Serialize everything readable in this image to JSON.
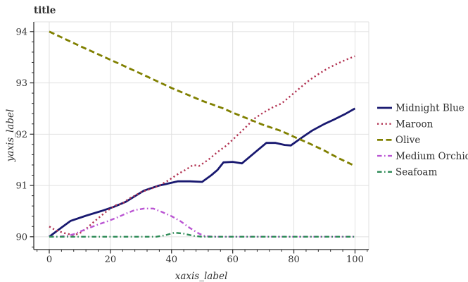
{
  "chart_data": {
    "type": "line",
    "title": "title",
    "xlabel": "xaxis_label",
    "ylabel": "yaxis_label",
    "x_ticks": [
      0,
      20,
      40,
      60,
      80,
      100
    ],
    "y_ticks": [
      90,
      91,
      92,
      93,
      94
    ],
    "xlim": [
      -5.06,
      104.5
    ],
    "ylim": [
      89.75,
      94.19
    ],
    "x_minor_step": 4,
    "y_minor_step": 0.2,
    "grid": true,
    "legend_position": "right-of-axes",
    "colors": {
      "text": "#303030",
      "tick_text": "#333333",
      "grid": "#e0e0e0",
      "spine_dark": "#262626",
      "spine_light": "#e0e0e0",
      "background": "#ffffff"
    },
    "series": [
      {
        "name": "Midnight Blue",
        "color": "#191970",
        "style": "solid",
        "dash": "",
        "width": 2.8,
        "points": [
          [
            0,
            90.0
          ],
          [
            4,
            90.18
          ],
          [
            7,
            90.31
          ],
          [
            12,
            90.41
          ],
          [
            17,
            90.5
          ],
          [
            21,
            90.58
          ],
          [
            25,
            90.68
          ],
          [
            28,
            90.79
          ],
          [
            31,
            90.9
          ],
          [
            36,
            91.0
          ],
          [
            42,
            91.08
          ],
          [
            46,
            91.08
          ],
          [
            50,
            91.07
          ],
          [
            53,
            91.2
          ],
          [
            55,
            91.3
          ],
          [
            57,
            91.45
          ],
          [
            60,
            91.46
          ],
          [
            63,
            91.43
          ],
          [
            67,
            91.63
          ],
          [
            71,
            91.83
          ],
          [
            74,
            91.83
          ],
          [
            77,
            91.79
          ],
          [
            79,
            91.78
          ],
          [
            83,
            91.95
          ],
          [
            86,
            92.07
          ],
          [
            90,
            92.2
          ],
          [
            93,
            92.28
          ],
          [
            97,
            92.4
          ],
          [
            100,
            92.5
          ]
        ]
      },
      {
        "name": "Maroon",
        "color": "#b23352",
        "style": "dotted",
        "dash": "2.2 3.6",
        "width": 2.4,
        "points": [
          [
            0,
            90.2
          ],
          [
            2,
            90.13
          ],
          [
            5,
            90.07
          ],
          [
            8,
            90.03
          ],
          [
            10,
            90.07
          ],
          [
            12,
            90.15
          ],
          [
            14,
            90.26
          ],
          [
            16,
            90.36
          ],
          [
            18,
            90.46
          ],
          [
            20,
            90.55
          ],
          [
            22,
            90.62
          ],
          [
            24,
            90.65
          ],
          [
            26,
            90.74
          ],
          [
            28,
            90.8
          ],
          [
            30,
            90.87
          ],
          [
            33,
            90.93
          ],
          [
            36,
            91.0
          ],
          [
            39,
            91.1
          ],
          [
            42,
            91.22
          ],
          [
            45,
            91.32
          ],
          [
            47,
            91.4
          ],
          [
            49,
            91.38
          ],
          [
            52,
            91.5
          ],
          [
            55,
            91.65
          ],
          [
            58,
            91.78
          ],
          [
            61,
            91.95
          ],
          [
            64,
            92.12
          ],
          [
            67,
            92.3
          ],
          [
            70,
            92.42
          ],
          [
            73,
            92.52
          ],
          [
            76,
            92.6
          ],
          [
            79,
            92.75
          ],
          [
            82,
            92.9
          ],
          [
            85,
            93.05
          ],
          [
            88,
            93.17
          ],
          [
            91,
            93.28
          ],
          [
            94,
            93.37
          ],
          [
            97,
            93.45
          ],
          [
            100,
            93.52
          ]
        ]
      },
      {
        "name": "Olive",
        "color": "#808000",
        "style": "dashed",
        "dash": "8 4.5",
        "width": 2.8,
        "points": [
          [
            0,
            94.0
          ],
          [
            10,
            93.72
          ],
          [
            20,
            93.45
          ],
          [
            30,
            93.18
          ],
          [
            40,
            92.9
          ],
          [
            50,
            92.65
          ],
          [
            57,
            92.5
          ],
          [
            60,
            92.42
          ],
          [
            65,
            92.3
          ],
          [
            70,
            92.18
          ],
          [
            76,
            92.06
          ],
          [
            80,
            91.95
          ],
          [
            85,
            91.82
          ],
          [
            90,
            91.68
          ],
          [
            95,
            91.52
          ],
          [
            100,
            91.38
          ]
        ]
      },
      {
        "name": "Medium Orchid",
        "color": "#ba55d3",
        "style": "dashdot",
        "dash": "6.5 3.5 1.6 3.5",
        "width": 2.4,
        "points": [
          [
            0,
            90.0
          ],
          [
            3,
            90.0
          ],
          [
            6,
            90.02
          ],
          [
            8,
            90.05
          ],
          [
            10,
            90.1
          ],
          [
            13,
            90.17
          ],
          [
            16,
            90.24
          ],
          [
            19,
            90.3
          ],
          [
            22,
            90.37
          ],
          [
            25,
            90.45
          ],
          [
            28,
            90.52
          ],
          [
            31,
            90.55
          ],
          [
            34,
            90.55
          ],
          [
            37,
            90.48
          ],
          [
            40,
            90.4
          ],
          [
            43,
            90.3
          ],
          [
            46,
            90.17
          ],
          [
            49,
            90.06
          ],
          [
            51,
            90.01
          ],
          [
            55,
            90.0
          ],
          [
            62,
            90.0
          ],
          [
            70,
            90.0
          ],
          [
            80,
            90.0
          ],
          [
            90,
            90.0
          ],
          [
            100,
            90.0
          ]
        ]
      },
      {
        "name": "Seafoam",
        "color": "#2e8b57",
        "style": "dashdot",
        "dash": "6.5 3.5 1.6 3.5",
        "width": 2.4,
        "points": [
          [
            0,
            90.0
          ],
          [
            10,
            90.0
          ],
          [
            20,
            90.0
          ],
          [
            30,
            90.0
          ],
          [
            35,
            90.0
          ],
          [
            38,
            90.03
          ],
          [
            41,
            90.08
          ],
          [
            44,
            90.06
          ],
          [
            47,
            90.02
          ],
          [
            50,
            90.0
          ],
          [
            60,
            90.0
          ],
          [
            70,
            90.0
          ],
          [
            80,
            90.0
          ],
          [
            90,
            90.0
          ],
          [
            100,
            90.0
          ]
        ]
      }
    ]
  }
}
